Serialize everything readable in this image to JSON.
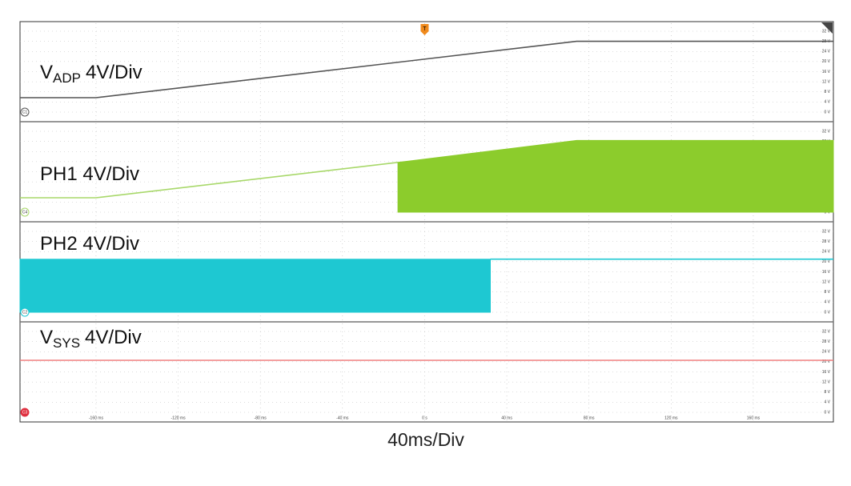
{
  "chart_data": {
    "type": "line",
    "xlabel": "40ms/Div",
    "trigger": "T",
    "xlim": [
      -197,
      199
    ],
    "xticks": [
      {
        "value": -160,
        "label": "-160 ms"
      },
      {
        "value": -120,
        "label": "-120 ms"
      },
      {
        "value": -80,
        "label": "-80 ms"
      },
      {
        "value": -40,
        "label": "-40 ms"
      },
      {
        "value": 0,
        "label": "0 s"
      },
      {
        "value": 40,
        "label": "40 ms"
      },
      {
        "value": 80,
        "label": "80 ms"
      },
      {
        "value": 120,
        "label": "120 ms"
      },
      {
        "value": 160,
        "label": "160 ms"
      }
    ],
    "ylim": [
      -3.8,
      35.8
    ],
    "yticks": [
      {
        "value": 0,
        "label": "0 V"
      },
      {
        "value": 4,
        "label": "4 V"
      },
      {
        "value": 8,
        "label": "8 V"
      },
      {
        "value": 12,
        "label": "12 V"
      },
      {
        "value": 16,
        "label": "16 V"
      },
      {
        "value": 20,
        "label": "20 V"
      },
      {
        "value": 24,
        "label": "24 V"
      },
      {
        "value": 28,
        "label": "28 V"
      },
      {
        "value": 32,
        "label": "32 V"
      }
    ],
    "grid": true,
    "panels": [
      {
        "channel": "C1",
        "label": "V",
        "label_sub": "ADP",
        "label_suffix": "4V/Div",
        "series": [
          {
            "color": "#555555",
            "x": [
              -197,
              -160,
              74,
              199
            ],
            "values": [
              5.7,
              5.7,
              28,
              28
            ]
          }
        ]
      },
      {
        "channel": "C4",
        "label": "PH1 4V/Div",
        "series": [
          {
            "color": "#a8d86a",
            "x": [
              -197,
              -160,
              -13
            ],
            "values": [
              5.7,
              5.7,
              19.7
            ]
          },
          {
            "color": "#8ccc2c",
            "fill": true,
            "x": [
              -13,
              74,
              199
            ],
            "values": [
              19.7,
              28.4,
              28.4
            ]
          }
        ]
      },
      {
        "channel": "C2",
        "label": "PH2 4V/Div",
        "series": [
          {
            "color": "#1ec8d2",
            "fill": true,
            "x": [
              -197,
              32
            ],
            "values": [
              21,
              21
            ]
          },
          {
            "color": "#1ec8d2",
            "x": [
              32,
              199
            ],
            "values": [
              21,
              21
            ]
          }
        ]
      },
      {
        "channel": "C3",
        "label": "V",
        "label_sub": "SYS",
        "label_suffix": "4V/Div",
        "series": [
          {
            "color": "#f08080",
            "x": [
              -197,
              199
            ],
            "values": [
              20.6,
              20.6
            ]
          }
        ]
      }
    ]
  }
}
